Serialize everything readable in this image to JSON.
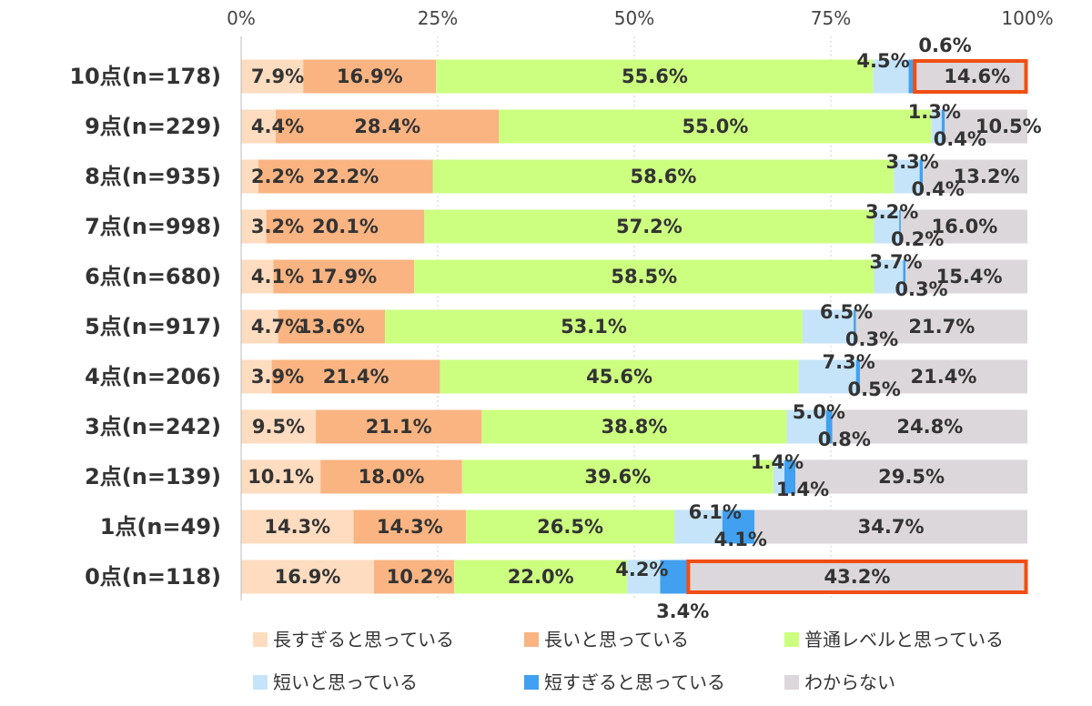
{
  "chart_data": {
    "type": "bar",
    "orientation": "horizontal",
    "stacked": "percent",
    "x_ticks": [
      "0%",
      "25%",
      "50%",
      "75%",
      "100%"
    ],
    "xlim": [
      0,
      100
    ],
    "grid": false,
    "legend_position": "bottom",
    "categories": [
      "10点(n=178)",
      "9点(n=229)",
      "8点(n=935)",
      "7点(n=998)",
      "6点(n=680)",
      "5点(n=917)",
      "4点(n=206)",
      "3点(n=242)",
      "2点(n=139)",
      "1点(n=49)",
      "0点(n=118)"
    ],
    "series": [
      {
        "name": "長すぎると思っている",
        "color": "#FDDCC0",
        "values": [
          7.9,
          4.4,
          2.2,
          3.2,
          4.1,
          4.7,
          3.9,
          9.5,
          10.1,
          14.3,
          16.9
        ]
      },
      {
        "name": "長いと思っている",
        "color": "#F9B482",
        "values": [
          16.9,
          28.4,
          22.2,
          20.1,
          17.9,
          13.6,
          21.4,
          21.1,
          18.0,
          14.3,
          10.2
        ]
      },
      {
        "name": "普通レベルと思っている",
        "color": "#CCFF80",
        "values": [
          55.6,
          55.0,
          58.6,
          57.2,
          58.5,
          53.1,
          45.6,
          38.8,
          39.6,
          26.5,
          22.0
        ]
      },
      {
        "name": "短いと思っている",
        "color": "#C5E4FA",
        "values": [
          4.5,
          1.3,
          3.3,
          3.2,
          3.7,
          6.5,
          7.3,
          5.0,
          1.4,
          6.1,
          4.2
        ]
      },
      {
        "name": "短すぎると思っている",
        "color": "#41A0F0",
        "values": [
          0.6,
          0.4,
          0.4,
          0.2,
          0.3,
          0.3,
          0.5,
          0.8,
          1.4,
          4.1,
          3.4
        ]
      },
      {
        "name": "わからない",
        "color": "#DBD7DA",
        "values": [
          14.6,
          10.5,
          13.2,
          16.0,
          15.4,
          21.7,
          21.4,
          24.8,
          29.5,
          34.7,
          43.2
        ]
      }
    ],
    "labels": [
      [
        "7.9%",
        "16.9%",
        "55.6%",
        "4.5%",
        "0.6%",
        "14.6%"
      ],
      [
        "4.4%",
        "28.4%",
        "55.0%",
        "1.3%",
        "0.4%",
        "10.5%"
      ],
      [
        "2.2%",
        "22.2%",
        "58.6%",
        "3.3%",
        "0.4%",
        "13.2%"
      ],
      [
        "3.2%",
        "20.1%",
        "57.2%",
        "3.2%",
        "0.2%",
        "16.0%"
      ],
      [
        "4.1%",
        "17.9%",
        "58.5%",
        "3.7%",
        "0.3%",
        "15.4%"
      ],
      [
        "4.7%",
        "13.6%",
        "53.1%",
        "6.5%",
        "0.3%",
        "21.7%"
      ],
      [
        "3.9%",
        "21.4%",
        "45.6%",
        "7.3%",
        "0.5%",
        "21.4%"
      ],
      [
        "9.5%",
        "21.1%",
        "38.8%",
        "5.0%",
        "0.8%",
        "24.8%"
      ],
      [
        "10.1%",
        "18.0%",
        "39.6%",
        "1.4%",
        "1.4%",
        "29.5%"
      ],
      [
        "14.3%",
        "14.3%",
        "26.5%",
        "6.1%",
        "4.1%",
        "34.7%"
      ],
      [
        "16.9%",
        "10.2%",
        "22.0%",
        "4.2%",
        "3.4%",
        "43.2%"
      ]
    ],
    "highlights": [
      {
        "category": "10点(n=178)",
        "series": "わからない",
        "color": "#F04E14"
      },
      {
        "category": "0点(n=118)",
        "series": "わからない",
        "color": "#F04E14"
      }
    ]
  }
}
